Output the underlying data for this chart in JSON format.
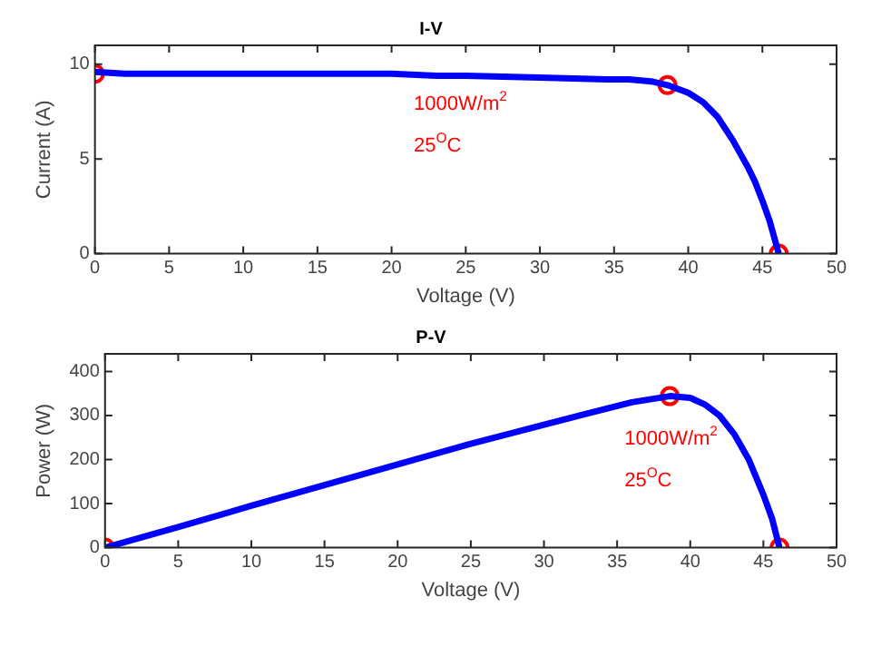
{
  "chart_data": [
    {
      "type": "line",
      "title": "I-V",
      "xlabel": "Voltage (V)",
      "ylabel": "Current (A)",
      "xlim": [
        0,
        50
      ],
      "xticks": [
        0,
        5,
        10,
        15,
        20,
        25,
        30,
        35,
        40,
        45,
        50
      ],
      "ylim": [
        0,
        11
      ],
      "yticks": [
        0,
        5,
        10
      ],
      "grid": false,
      "legend": false,
      "annotations": [
        "1000W/m$^{2}$",
        "25$^{O}$C"
      ],
      "series": [
        {
          "color": "#0000ff",
          "marker": "none",
          "x": [
            0,
            2,
            5,
            10,
            15,
            20,
            23,
            25,
            30,
            34.5,
            36,
            37.5,
            38.6,
            40,
            41,
            42,
            43,
            44,
            44.5,
            45,
            45.5,
            46.1
          ],
          "values": [
            9.6,
            9.5,
            9.5,
            9.5,
            9.5,
            9.5,
            9.4,
            9.4,
            9.3,
            9.2,
            9.2,
            9.1,
            8.9,
            8.5,
            8.0,
            7.2,
            6.0,
            4.6,
            3.8,
            2.8,
            1.7,
            0
          ]
        },
        {
          "type": "scatter",
          "marker": "circle",
          "color": "#ff0000",
          "x": [
            0,
            38.6,
            46.1
          ],
          "values": [
            9.5,
            8.9,
            0
          ]
        }
      ]
    },
    {
      "type": "line",
      "title": "P-V",
      "xlabel": "Voltage (V)",
      "ylabel": "Power (W)",
      "xlim": [
        0,
        50
      ],
      "xticks": [
        0,
        5,
        10,
        15,
        20,
        25,
        30,
        35,
        40,
        45,
        50
      ],
      "ylim": [
        0,
        440
      ],
      "yticks": [
        0,
        100,
        200,
        300,
        400
      ],
      "grid": false,
      "legend": false,
      "annotations": [
        "1000W/m$^{2}$",
        "25$^{O}$C"
      ],
      "series": [
        {
          "color": "#0000ff",
          "marker": "none",
          "x": [
            0,
            5,
            10,
            15,
            20,
            25,
            30,
            33,
            36,
            38.6,
            40,
            41,
            42,
            43,
            44,
            45,
            45.6,
            46.1
          ],
          "values": [
            0,
            47,
            95,
            142,
            189,
            236,
            279,
            305,
            330,
            344,
            340,
            325,
            300,
            258,
            200,
            120,
            65,
            0
          ]
        },
        {
          "type": "scatter",
          "marker": "circle",
          "color": "#ff0000",
          "x": [
            0,
            38.6,
            46.1
          ],
          "values": [
            0,
            344,
            0
          ]
        }
      ]
    }
  ]
}
